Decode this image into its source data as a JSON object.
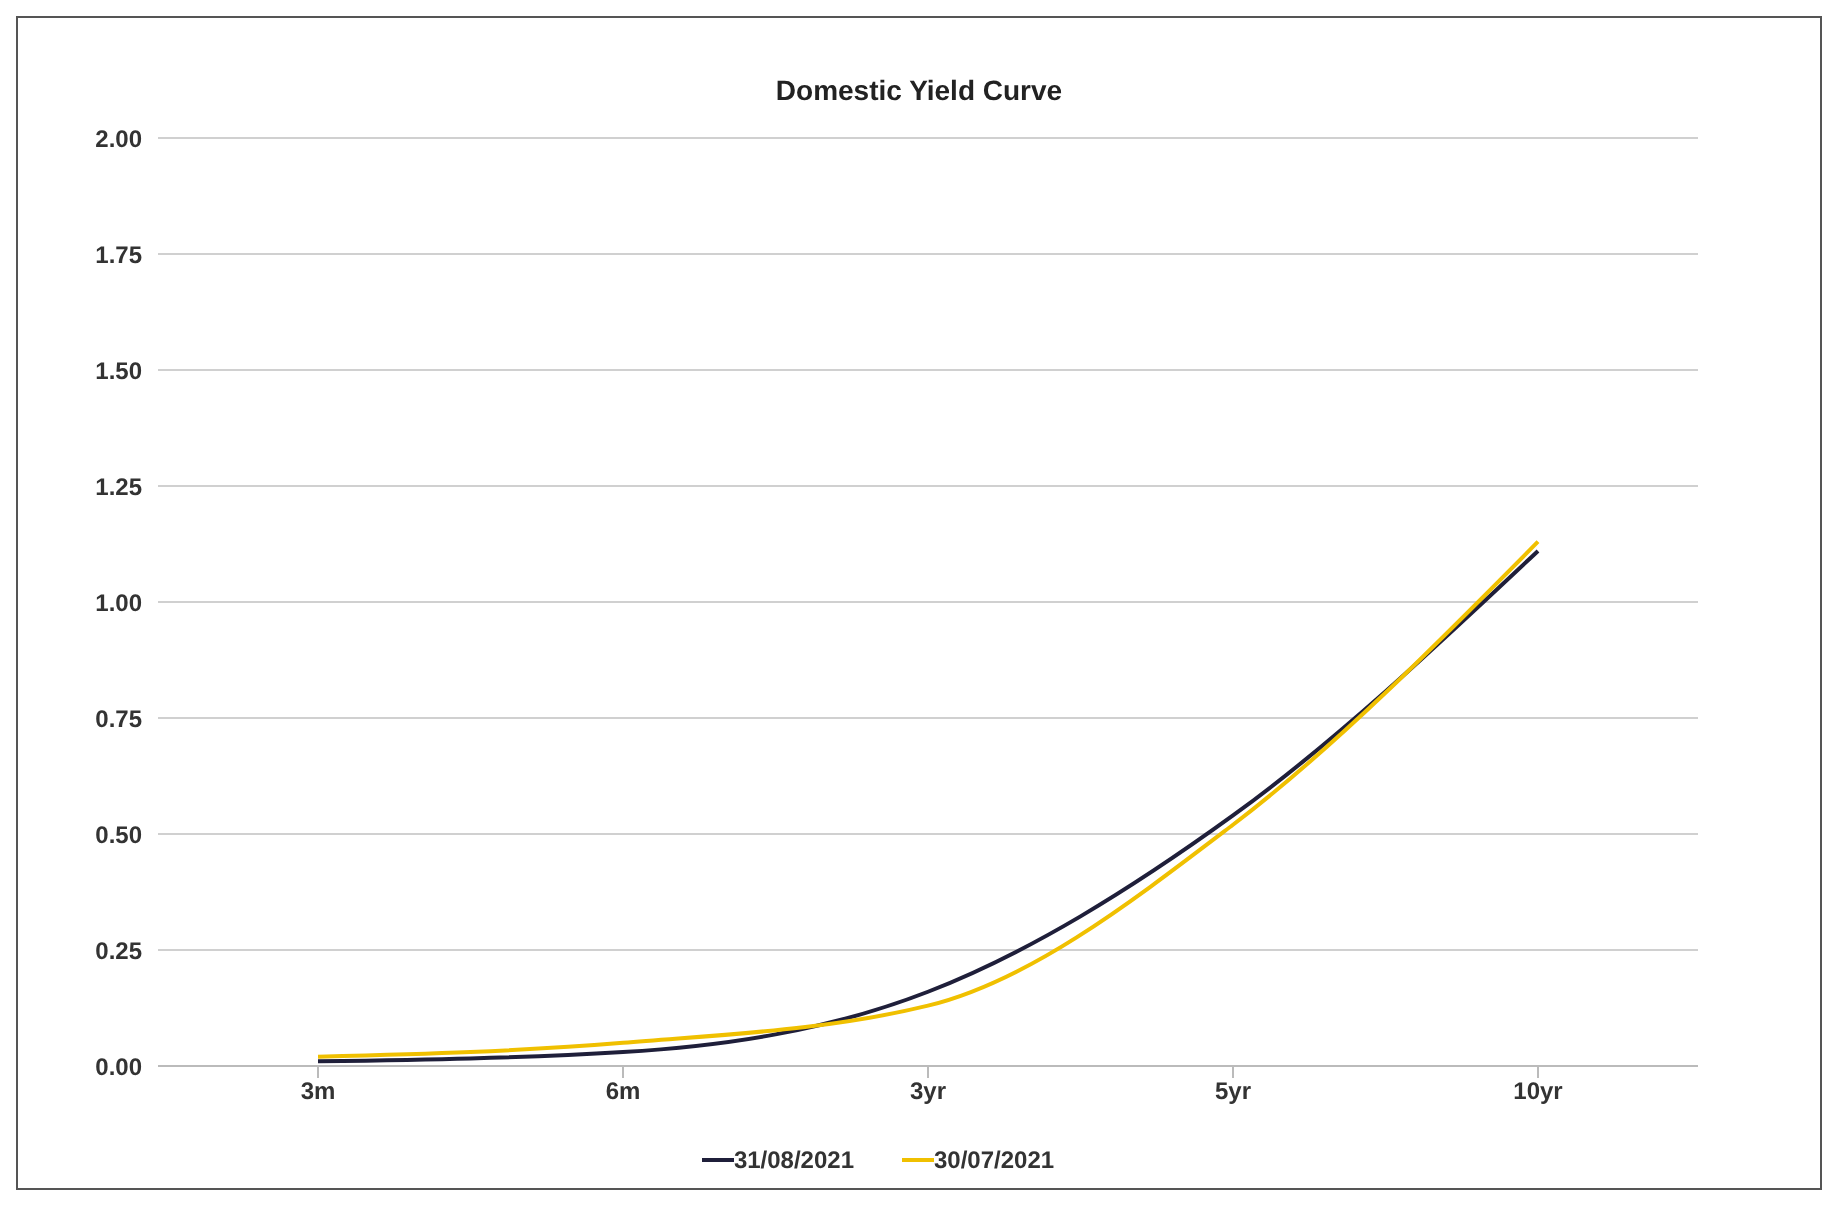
{
  "chart_data": {
    "type": "line",
    "title": "Domestic Yield Curve",
    "categories": [
      "3m",
      "6m",
      "3yr",
      "5yr",
      "10yr"
    ],
    "series": [
      {
        "name": "31/08/2021",
        "color": "#1f1f3a",
        "values": [
          0.01,
          0.03,
          0.16,
          0.54,
          1.11
        ]
      },
      {
        "name": "30/07/2021",
        "color": "#f0c000",
        "values": [
          0.02,
          0.05,
          0.13,
          0.52,
          1.13
        ]
      }
    ],
    "ylim": [
      0,
      2
    ],
    "yticks": [
      {
        "value": 0,
        "label": "0.00"
      },
      {
        "value": 0.25,
        "label": "0.25"
      },
      {
        "value": 0.5,
        "label": "0.50"
      },
      {
        "value": 0.75,
        "label": "0.75"
      },
      {
        "value": 1,
        "label": "1.00"
      },
      {
        "value": 1.25,
        "label": "1.25"
      },
      {
        "value": 1.5,
        "label": "1.50"
      },
      {
        "value": 1.75,
        "label": "1.75"
      },
      {
        "value": 2,
        "label": "2.00"
      }
    ],
    "grid": "y",
    "legend": "bottom",
    "marker": "none",
    "line_style": "solid"
  }
}
